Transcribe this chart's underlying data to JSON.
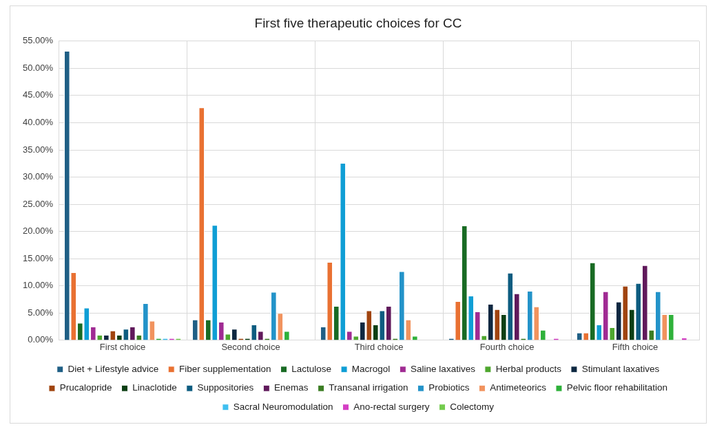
{
  "chart_data": {
    "type": "bar",
    "title": "First five therapeutic choices for CC",
    "categories": [
      "First choice",
      "Second choice",
      "Third choice",
      "Fourth choice",
      "Fifth choice"
    ],
    "series": [
      {
        "name": "Diet + Lifestyle advice",
        "color": "#1f5f85",
        "values": [
          53.2,
          3.8,
          2.5,
          0.4,
          1.4
        ]
      },
      {
        "name": "Fiber supplementation",
        "color": "#e97132",
        "values": [
          12.5,
          42.8,
          14.4,
          7.2,
          1.4
        ]
      },
      {
        "name": "Lactulose",
        "color": "#196b24",
        "values": [
          3.2,
          3.8,
          6.3,
          21.1,
          14.3
        ]
      },
      {
        "name": "Macrogol",
        "color": "#0f9ed5",
        "values": [
          6.0,
          21.2,
          32.6,
          8.2,
          2.9
        ]
      },
      {
        "name": "Saline laxatives",
        "color": "#a02b93",
        "values": [
          2.5,
          3.4,
          1.7,
          5.3,
          9.0
        ]
      },
      {
        "name": "Herbal products",
        "color": "#4ea72e",
        "values": [
          1.0,
          1.2,
          0.8,
          0.9,
          2.4
        ]
      },
      {
        "name": "Stimulant laxatives",
        "color": "#0e2841",
        "values": [
          1.0,
          2.1,
          3.4,
          6.7,
          7.1
        ]
      },
      {
        "name": "Prucalopride",
        "color": "#a0440f",
        "values": [
          1.8,
          0.4,
          5.5,
          5.7,
          10.0
        ]
      },
      {
        "name": "Linaclotide",
        "color": "#0c3f14",
        "values": [
          1.0,
          0.4,
          2.9,
          4.8,
          5.7
        ]
      },
      {
        "name": "Suppositories",
        "color": "#0d5c80",
        "values": [
          2.1,
          2.9,
          5.5,
          12.4,
          10.5
        ]
      },
      {
        "name": "Enemas",
        "color": "#60195b",
        "values": [
          2.5,
          1.7,
          6.3,
          8.6,
          13.8
        ]
      },
      {
        "name": "Transanal irrigation",
        "color": "#3b7d23",
        "values": [
          1.0,
          0.4,
          0.4,
          0.4,
          1.9
        ]
      },
      {
        "name": "Probiotics",
        "color": "#2393c9",
        "values": [
          6.8,
          8.9,
          12.7,
          9.1,
          9.0
        ]
      },
      {
        "name": "Antimeteorics",
        "color": "#f1935e",
        "values": [
          3.6,
          5.0,
          3.8,
          6.2,
          4.8
        ]
      },
      {
        "name": "Pelvic floor rehabilitation",
        "color": "#2eb13a",
        "values": [
          0.4,
          1.7,
          0.8,
          1.9,
          4.8
        ]
      },
      {
        "name": "Sacral Neuromodulation",
        "color": "#3fbff0",
        "values": [
          0.4,
          0,
          0,
          0,
          0
        ]
      },
      {
        "name": "Ano-rectal surgery",
        "color": "#d43fc4",
        "values": [
          0.4,
          0,
          0,
          0.4,
          0.5
        ]
      },
      {
        "name": "Colectomy",
        "color": "#74cc4e",
        "values": [
          0.4,
          0,
          0,
          0,
          0
        ]
      }
    ],
    "ylim": [
      0,
      55
    ],
    "yticks": [
      {
        "value": 0,
        "label": "0.00%"
      },
      {
        "value": 5,
        "label": "5.00%"
      },
      {
        "value": 10,
        "label": "10.00%"
      },
      {
        "value": 15,
        "label": "15.00%"
      },
      {
        "value": 20,
        "label": "20.00%"
      },
      {
        "value": 25,
        "label": "25.00%"
      },
      {
        "value": 30,
        "label": "30.00%"
      },
      {
        "value": 35,
        "label": "35.00%"
      },
      {
        "value": 40,
        "label": "40.00%"
      },
      {
        "value": 45,
        "label": "45.00%"
      },
      {
        "value": 50,
        "label": "50.00%"
      },
      {
        "value": 55,
        "label": "55.00%"
      }
    ],
    "grid": true,
    "legend": "bottom"
  }
}
